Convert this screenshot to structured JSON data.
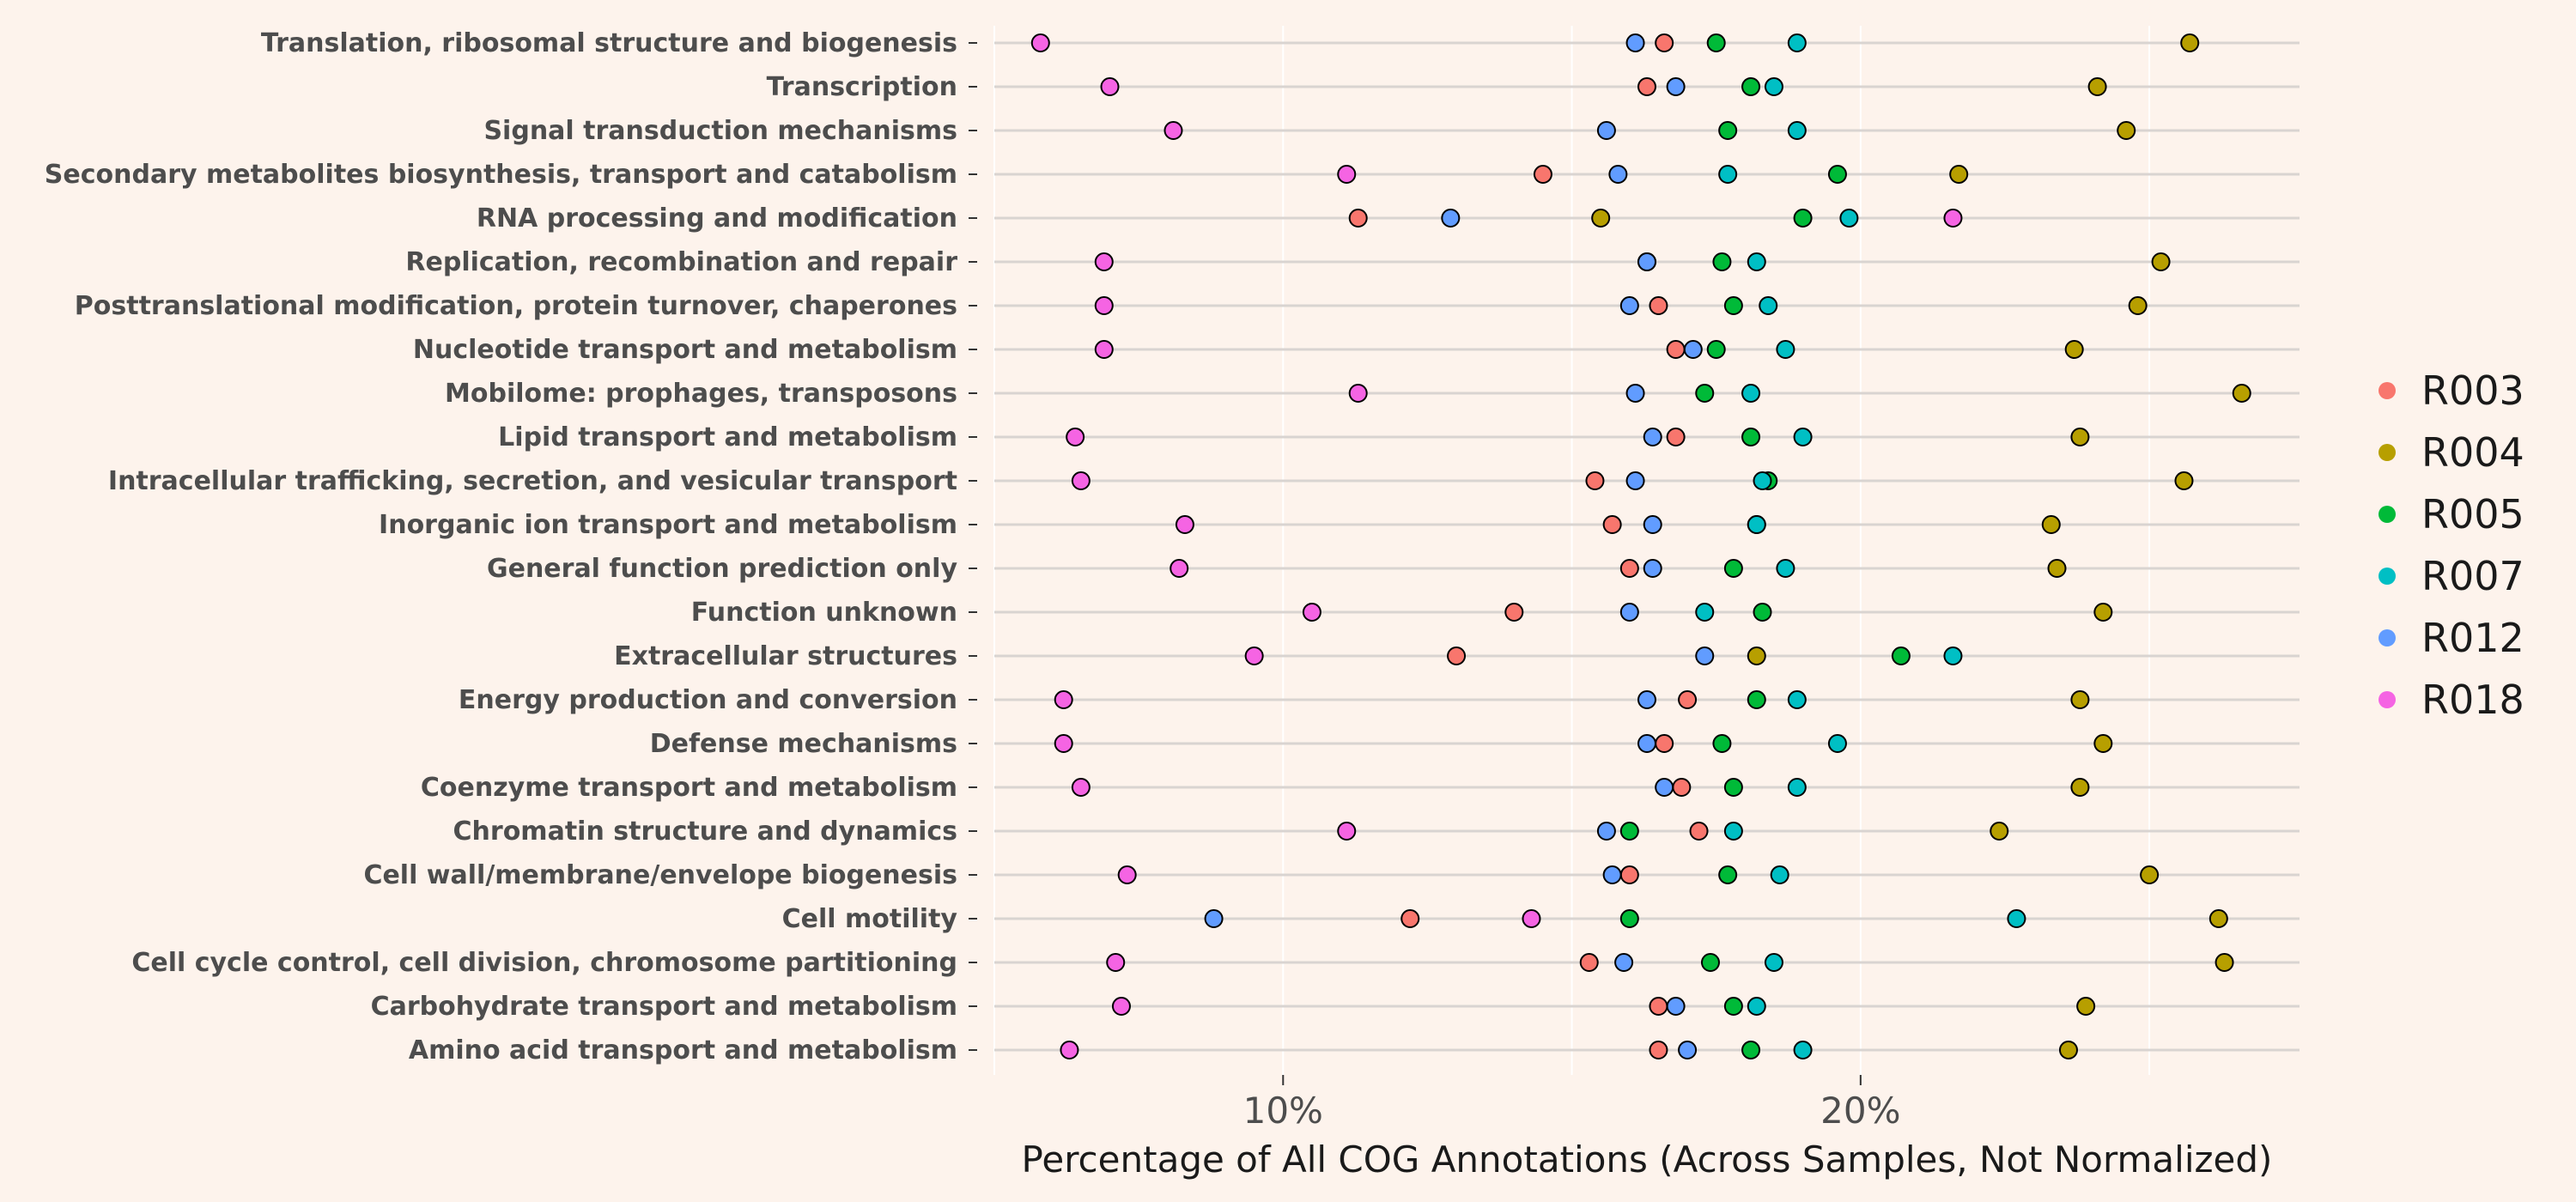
{
  "chart_data": {
    "type": "scatter",
    "xlabel": "Percentage of All COG Annotations (Across Samples, Not Normalized)",
    "ylabel": "",
    "xlim": [
      5.0,
      27.6
    ],
    "x_ticks": [
      10,
      20
    ],
    "x_tick_labels": [
      "10%",
      "20%"
    ],
    "grid": true,
    "legend_position": "right",
    "categories": [
      "Translation, ribosomal structure and biogenesis",
      "Transcription",
      "Signal transduction mechanisms",
      "Secondary metabolites biosynthesis, transport and catabolism",
      "RNA processing and modification",
      "Replication, recombination and repair",
      "Posttranslational modification, protein turnover, chaperones",
      "Nucleotide transport and metabolism",
      "Mobilome: prophages, transposons",
      "Lipid transport and metabolism",
      "Intracellular trafficking, secretion, and vesicular transport",
      "Inorganic ion transport and metabolism",
      "General function prediction only",
      "Function unknown",
      "Extracellular structures",
      "Energy production and conversion",
      "Defense mechanisms",
      "Coenzyme transport and metabolism",
      "Chromatin structure and dynamics",
      "Cell wall/membrane/envelope biogenesis",
      "Cell motility",
      "Cell cycle control, cell division, chromosome partitioning",
      "Carbohydrate transport and metabolism",
      "Amino acid transport and metabolism"
    ],
    "series": [
      {
        "name": "R003",
        "color": "#f8766d",
        "values": [
          16.6,
          16.3,
          null,
          14.5,
          11.3,
          16.3,
          16.5,
          16.8,
          null,
          16.8,
          15.4,
          15.7,
          16.0,
          14.0,
          13.0,
          17.0,
          16.6,
          16.9,
          17.2,
          16.0,
          12.2,
          15.3,
          16.5,
          16.5
        ]
      },
      {
        "name": "R004",
        "color": "#b79f00",
        "values": [
          25.7,
          24.1,
          24.6,
          21.7,
          15.5,
          25.2,
          24.8,
          23.7,
          26.6,
          23.8,
          25.6,
          23.3,
          23.4,
          24.2,
          18.2,
          23.8,
          24.2,
          23.8,
          22.4,
          25.0,
          26.2,
          26.3,
          23.9,
          23.6
        ]
      },
      {
        "name": "R005",
        "color": "#00ba38",
        "values": [
          17.5,
          18.1,
          17.7,
          19.6,
          19.0,
          17.6,
          17.8,
          17.5,
          17.3,
          18.1,
          18.4,
          18.2,
          17.8,
          18.3,
          20.7,
          18.2,
          17.6,
          17.8,
          16.0,
          17.7,
          16.0,
          17.4,
          17.8,
          18.1
        ]
      },
      {
        "name": "R007",
        "color": "#00bfc4",
        "values": [
          18.9,
          18.5,
          18.9,
          17.7,
          19.8,
          18.2,
          18.4,
          18.7,
          18.1,
          19.0,
          18.3,
          18.2,
          18.7,
          17.3,
          21.6,
          18.9,
          19.6,
          18.9,
          17.8,
          18.6,
          22.7,
          18.5,
          18.2,
          19.0
        ]
      },
      {
        "name": "R012",
        "color": "#619cff",
        "values": [
          16.1,
          16.8,
          15.6,
          15.8,
          12.9,
          16.3,
          16.0,
          17.1,
          16.1,
          16.4,
          16.1,
          16.4,
          16.4,
          16.0,
          17.3,
          16.3,
          16.3,
          16.6,
          15.6,
          15.7,
          8.8,
          15.9,
          16.8,
          17.0
        ]
      },
      {
        "name": "R018",
        "color": "#f564e3",
        "values": [
          5.8,
          7.0,
          8.1,
          11.1,
          21.6,
          6.9,
          6.9,
          6.9,
          11.3,
          6.4,
          6.5,
          8.3,
          8.2,
          10.5,
          9.5,
          6.2,
          6.2,
          6.5,
          11.1,
          7.3,
          14.3,
          7.1,
          7.2,
          6.3
        ]
      }
    ]
  }
}
